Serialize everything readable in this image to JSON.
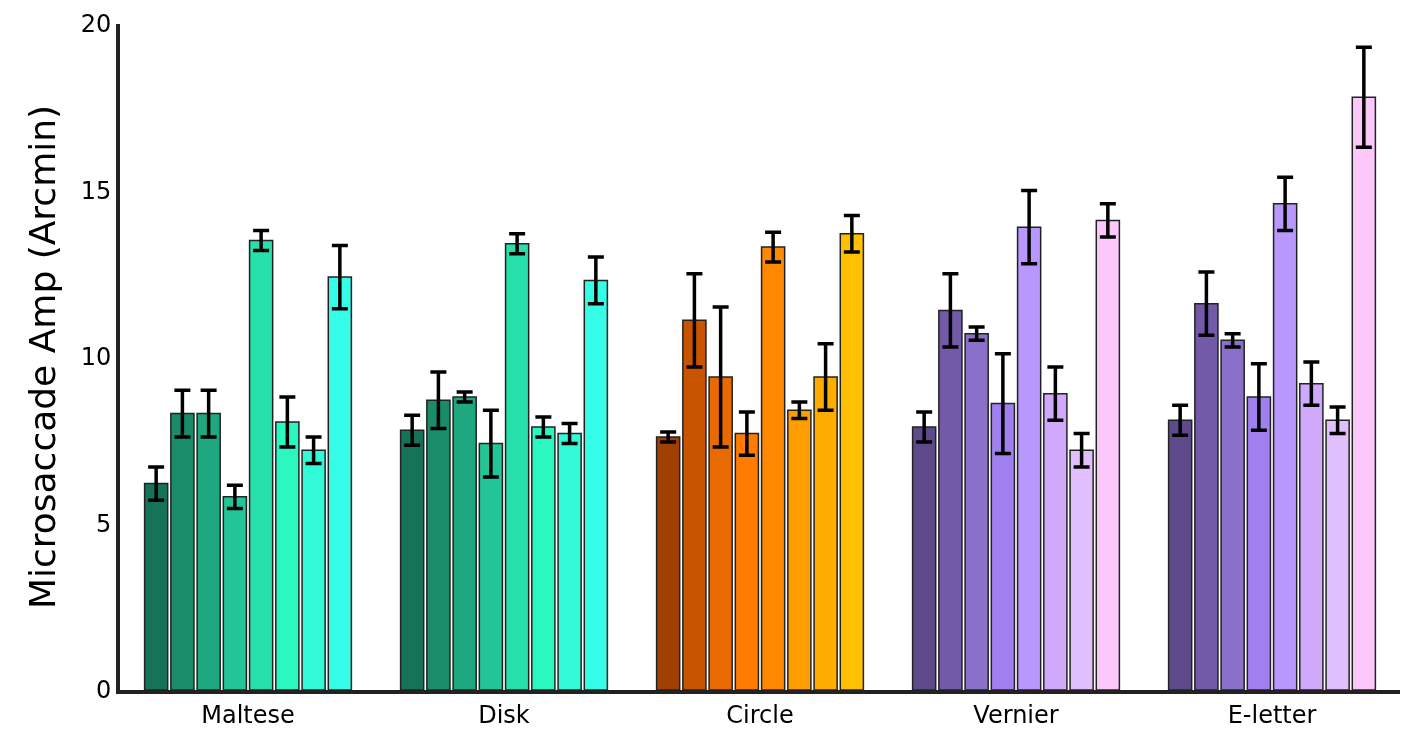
{
  "chart_data": {
    "type": "bar",
    "ylabel": "Microsaccade Amp (Arcmin)",
    "categories": [
      "Maltese",
      "Disk",
      "Circle",
      "Vernier",
      "E-letter"
    ],
    "ylim": [
      0,
      20
    ],
    "yticks": [
      0,
      5,
      10,
      15,
      20
    ],
    "series": [
      {
        "colors": [
          "#157358",
          "#157358",
          "#a04000",
          "#5e4a8a",
          "#5e4a8a"
        ],
        "values": [
          6.2,
          7.8,
          7.6,
          7.9,
          8.1
        ],
        "errors": [
          0.5,
          0.45,
          0.15,
          0.45,
          0.45
        ]
      },
      {
        "colors": [
          "#1a8c6a",
          "#1a8c6a",
          "#c85400",
          "#735aa8",
          "#735aa8"
        ],
        "values": [
          8.3,
          8.7,
          11.1,
          11.4,
          11.6
        ],
        "errors": [
          0.7,
          0.85,
          1.4,
          1.1,
          0.95
        ]
      },
      {
        "colors": [
          "#1fa880",
          "#1fa880",
          "#e86a00",
          "#8a70c8",
          "#8a70c8"
        ],
        "values": [
          8.3,
          8.8,
          9.4,
          10.7,
          10.5
        ],
        "errors": [
          0.7,
          0.15,
          2.1,
          0.2,
          0.2
        ]
      },
      {
        "colors": [
          "#23c496",
          "#23c496",
          "#ff7c00",
          "#a080ee",
          "#a080ee"
        ],
        "values": [
          5.8,
          7.4,
          7.7,
          8.6,
          8.8
        ],
        "errors": [
          0.35,
          1.0,
          0.65,
          1.5,
          1.0
        ]
      },
      {
        "colors": [
          "#27e0ab",
          "#27e0ab",
          "#ff8800",
          "#b898fc",
          "#b898fc"
        ],
        "values": [
          13.5,
          13.4,
          13.3,
          13.9,
          14.6
        ],
        "errors": [
          0.3,
          0.3,
          0.45,
          1.1,
          0.8
        ]
      },
      {
        "colors": [
          "#2bf7c0",
          "#2bf7c0",
          "#ff9c00",
          "#d0a8fc",
          "#d0a8fc"
        ],
        "values": [
          8.05,
          7.9,
          8.4,
          8.9,
          9.2
        ],
        "errors": [
          0.75,
          0.3,
          0.25,
          0.8,
          0.65
        ]
      },
      {
        "colors": [
          "#30fad8",
          "#30fad8",
          "#ffac00",
          "#e0c0fc",
          "#e0c0fc"
        ],
        "values": [
          7.2,
          7.7,
          9.4,
          7.2,
          8.1
        ],
        "errors": [
          0.4,
          0.3,
          1.0,
          0.5,
          0.4
        ]
      },
      {
        "colors": [
          "#35fde8",
          "#35fde8",
          "#ffc000",
          "#fcc8fc",
          "#fcc8fc"
        ],
        "values": [
          12.4,
          12.3,
          13.7,
          14.1,
          17.8
        ],
        "errors": [
          0.95,
          0.7,
          0.55,
          0.5,
          1.5
        ]
      }
    ]
  }
}
